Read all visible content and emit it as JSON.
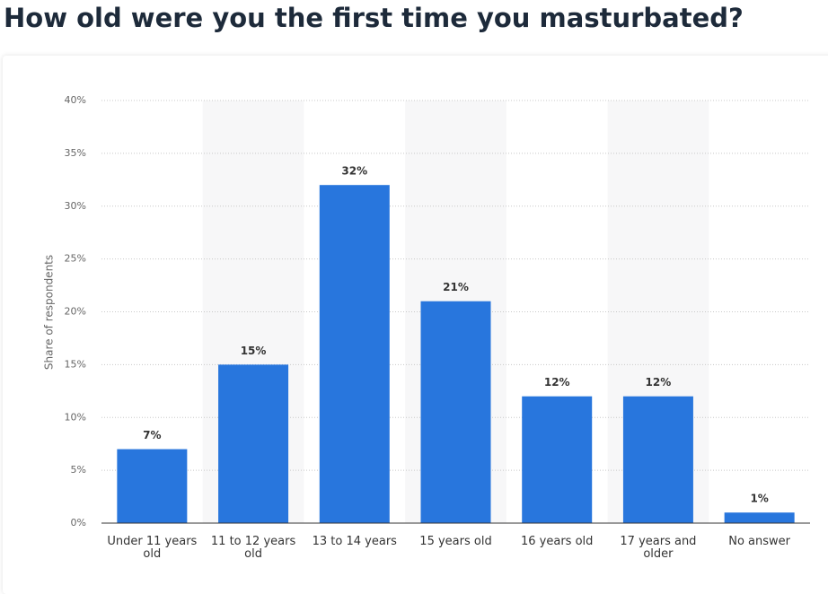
{
  "chart_data": {
    "type": "bar",
    "title": "How old were you the first time you masturbated?",
    "y_label": "Share of respondents",
    "categories": [
      "Under 11 years old",
      "11 to 12 years old",
      "13 to 14 years",
      "15 years old",
      "16 years old",
      "17 years and older",
      "No answer"
    ],
    "values": [
      7,
      15,
      32,
      21,
      12,
      12,
      1
    ],
    "value_labels": [
      "7%",
      "15%",
      "32%",
      "21%",
      "12%",
      "12%",
      "1%"
    ],
    "color": "#2876dd",
    "ylim": [
      0,
      40
    ],
    "yticks": [
      {
        "value": 0,
        "label": "0%"
      },
      {
        "value": 5,
        "label": "5%"
      },
      {
        "value": 10,
        "label": "10%"
      },
      {
        "value": 15,
        "label": "15%"
      },
      {
        "value": 20,
        "label": "20%"
      },
      {
        "value": 25,
        "label": "25%"
      },
      {
        "value": 30,
        "label": "30%"
      },
      {
        "value": 35,
        "label": "35%"
      },
      {
        "value": 40,
        "label": "40%"
      }
    ],
    "grid": true
  }
}
